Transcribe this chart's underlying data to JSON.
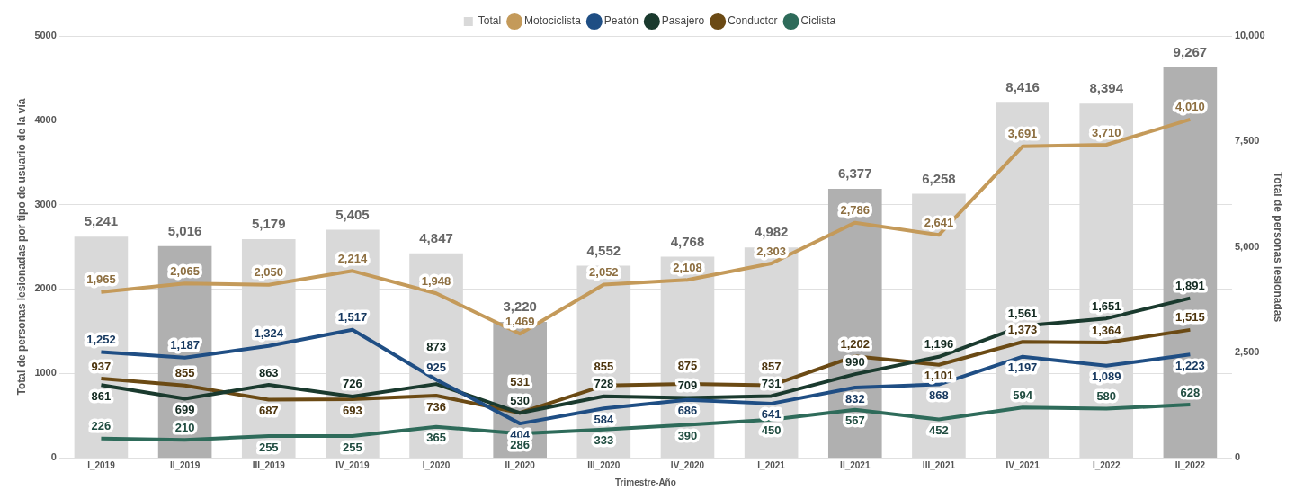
{
  "chart_data": {
    "type": "line",
    "xlabel": "Trimestre-Año",
    "ylabel": "Total de personas lesionadas por tipo de usuario de la vía",
    "y2label": "Total de personas lesionadas",
    "categories": [
      "I_2019",
      "II_2019",
      "III_2019",
      "IV_2019",
      "I_2020",
      "II_2020",
      "III_2020",
      "IV_2020",
      "I_2021",
      "II_2021",
      "III_2021",
      "IV_2021",
      "I_2022",
      "II_2022"
    ],
    "series": [
      {
        "name": "Total",
        "type": "bar",
        "axis": "y2",
        "color": "#d9d9d9",
        "colors": [
          "#d9d9d9",
          "#b0b0b0",
          "#d9d9d9",
          "#d9d9d9",
          "#d9d9d9",
          "#b0b0b0",
          "#d9d9d9",
          "#d9d9d9",
          "#d9d9d9",
          "#b0b0b0",
          "#d9d9d9",
          "#d9d9d9",
          "#d9d9d9",
          "#b0b0b0"
        ],
        "values": [
          5241,
          5016,
          5179,
          5405,
          4847,
          3220,
          4552,
          4768,
          4982,
          6377,
          6258,
          8416,
          8394,
          9267
        ],
        "value_labels": [
          "5,241",
          "5,016",
          "5,179",
          "5,405",
          "4,847",
          "3,220",
          "4,552",
          "4,768",
          "4,982",
          "6,377",
          "6,258",
          "8,416",
          "8,394",
          "9,267"
        ]
      },
      {
        "name": "Motociclista",
        "color": "#c49a5a",
        "values": [
          1965,
          2065,
          2050,
          2214,
          1948,
          1469,
          2052,
          2108,
          2303,
          2786,
          2641,
          3691,
          3710,
          4010
        ],
        "value_labels": [
          "1,965",
          "2,065",
          "2,050",
          "2,214",
          "1,948",
          "1,469",
          "2,052",
          "2,108",
          "2,303",
          "2,786",
          "2,641",
          "3,691",
          "3,710",
          "4,010"
        ]
      },
      {
        "name": "Peatón",
        "color": "#1f4e84",
        "values": [
          1252,
          1187,
          1324,
          1517,
          925,
          404,
          584,
          686,
          641,
          832,
          868,
          1197,
          1089,
          1223
        ],
        "value_labels": [
          "1,252",
          "1,187",
          "1,324",
          "1,517",
          "925",
          "404",
          "584",
          "686",
          "641",
          "832",
          "868",
          "1,197",
          "1,089",
          "1,223"
        ]
      },
      {
        "name": "Pasajero",
        "color": "#1a3a2e",
        "values": [
          861,
          699,
          863,
          726,
          873,
          530,
          728,
          709,
          731,
          990,
          1196,
          1561,
          1651,
          1891
        ],
        "value_labels": [
          "861",
          "699",
          "863",
          "726",
          "873",
          "530",
          "728",
          "709",
          "731",
          "990",
          "1,196",
          "1,561",
          "1,651",
          "1,891"
        ]
      },
      {
        "name": "Conductor",
        "color": "#6b4a14",
        "values": [
          937,
          855,
          687,
          693,
          736,
          531,
          855,
          875,
          857,
          1202,
          1101,
          1373,
          1364,
          1515
        ],
        "value_labels": [
          "937",
          "855",
          "687",
          "693",
          "736",
          "531",
          "855",
          "875",
          "857",
          "1,202",
          "1,101",
          "1,373",
          "1,364",
          "1,515"
        ]
      },
      {
        "name": "Ciclista",
        "color": "#2e6b5a",
        "values": [
          226,
          210,
          255,
          255,
          365,
          286,
          333,
          390,
          450,
          567,
          452,
          594,
          580,
          628
        ],
        "value_labels": [
          "226",
          "210",
          "255",
          "255",
          "365",
          "286",
          "333",
          "390",
          "450",
          "567",
          "452",
          "594",
          "580",
          "628"
        ]
      }
    ],
    "ylim": [
      0,
      5000
    ],
    "yticks": [
      0,
      1000,
      2000,
      3000,
      4000,
      5000
    ],
    "y2lim": [
      0,
      10000
    ],
    "y2ticks": [
      0,
      {
        "value": 2500,
        "label": "2,500"
      },
      {
        "value": 5000,
        "label": "5,000"
      },
      {
        "value": 7500,
        "label": "7,500"
      },
      {
        "value": 10000,
        "label": "10,000"
      }
    ],
    "grid": "y",
    "legend": "top",
    "marker": "none",
    "line_style": "solid"
  }
}
